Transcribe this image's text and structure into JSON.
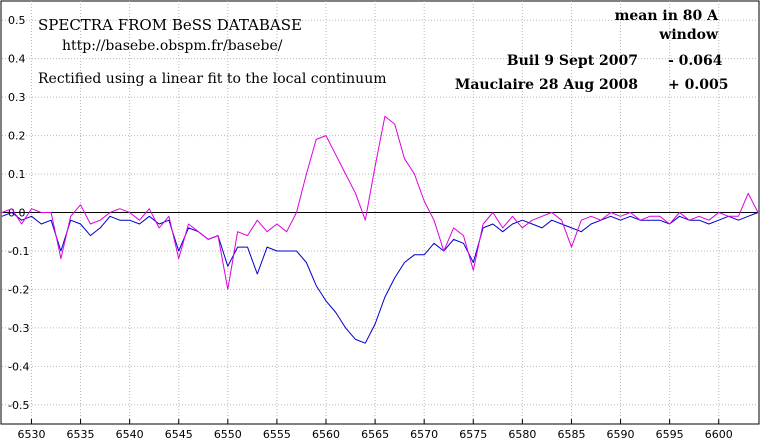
{
  "chart_data": {
    "type": "line",
    "title": "SPECTRA FROM BeSS DATABASE",
    "subtitle": "http://basebe.obspm.fr/basebe/",
    "note": "Rectified using a linear fit to the local continuum",
    "legend_header": [
      "mean in  80 A",
      "window"
    ],
    "xlim": [
      6527,
      6604
    ],
    "ylim": [
      -0.55,
      0.55
    ],
    "xticks": [
      6530,
      6535,
      6540,
      6545,
      6550,
      6555,
      6560,
      6565,
      6570,
      6575,
      6580,
      6585,
      6590,
      6595,
      6600
    ],
    "yticks": [
      0.5,
      0.4,
      0.3,
      0.2,
      0.1,
      0,
      -0.1,
      -0.2,
      -0.3,
      -0.4,
      -0.5
    ],
    "ytick_labels": [
      "0.5",
      "0.4",
      "0.3",
      "0.2",
      "0.1",
      "0.0",
      "-0.1",
      "-0.2",
      "-0.3",
      "-0.4",
      "-0.5"
    ],
    "grid": true,
    "zero_line": true,
    "legend_position": "top-right",
    "series": [
      {
        "name": "Buil  9 Sept 2007",
        "mean": "- 0.064",
        "color": "#0000cc",
        "x": [
          6527,
          6528,
          6529,
          6530,
          6531,
          6532,
          6533,
          6534,
          6535,
          6536,
          6537,
          6538,
          6539,
          6540,
          6541,
          6542,
          6543,
          6544,
          6545,
          6546,
          6547,
          6548,
          6549,
          6550,
          6551,
          6552,
          6553,
          6554,
          6555,
          6556,
          6557,
          6558,
          6559,
          6560,
          6561,
          6562,
          6563,
          6564,
          6565,
          6566,
          6567,
          6568,
          6569,
          6570,
          6571,
          6572,
          6573,
          6574,
          6575,
          6576,
          6577,
          6578,
          6579,
          6580,
          6581,
          6582,
          6583,
          6584,
          6585,
          6586,
          6587,
          6588,
          6589,
          6590,
          6591,
          6592,
          6593,
          6594,
          6595,
          6596,
          6597,
          6598,
          6599,
          6600,
          6601,
          6602,
          6603,
          6604
        ],
        "y": [
          -0.01,
          0.0,
          -0.02,
          -0.01,
          -0.03,
          -0.02,
          -0.1,
          -0.02,
          -0.03,
          -0.06,
          -0.04,
          -0.01,
          -0.02,
          -0.02,
          -0.03,
          -0.01,
          -0.03,
          -0.02,
          -0.1,
          -0.04,
          -0.05,
          -0.07,
          -0.06,
          -0.14,
          -0.09,
          -0.09,
          -0.16,
          -0.09,
          -0.1,
          -0.1,
          -0.1,
          -0.13,
          -0.19,
          -0.23,
          -0.26,
          -0.3,
          -0.33,
          -0.34,
          -0.29,
          -0.22,
          -0.17,
          -0.13,
          -0.11,
          -0.11,
          -0.08,
          -0.1,
          -0.07,
          -0.08,
          -0.13,
          -0.04,
          -0.03,
          -0.05,
          -0.03,
          -0.02,
          -0.03,
          -0.04,
          -0.02,
          -0.03,
          -0.04,
          -0.05,
          -0.03,
          -0.02,
          -0.01,
          -0.02,
          -0.01,
          -0.02,
          -0.02,
          -0.02,
          -0.03,
          -0.01,
          -0.02,
          -0.02,
          -0.03,
          -0.02,
          -0.01,
          -0.02,
          -0.01,
          0.0
        ]
      },
      {
        "name": "Mauclaire 28 Aug 2008",
        "mean": "+ 0.005",
        "color": "#dd00dd",
        "x": [
          6527,
          6528,
          6529,
          6530,
          6531,
          6532,
          6533,
          6534,
          6535,
          6536,
          6537,
          6538,
          6539,
          6540,
          6541,
          6542,
          6543,
          6544,
          6545,
          6546,
          6547,
          6548,
          6549,
          6550,
          6551,
          6552,
          6553,
          6554,
          6555,
          6556,
          6557,
          6558,
          6559,
          6560,
          6561,
          6562,
          6563,
          6564,
          6565,
          6566,
          6567,
          6568,
          6569,
          6570,
          6571,
          6572,
          6573,
          6574,
          6575,
          6576,
          6577,
          6578,
          6579,
          6580,
          6581,
          6582,
          6583,
          6584,
          6585,
          6586,
          6587,
          6588,
          6589,
          6590,
          6591,
          6592,
          6593,
          6594,
          6595,
          6596,
          6597,
          6598,
          6599,
          6600,
          6601,
          6602,
          6603,
          6604
        ],
        "y": [
          0.0,
          0.01,
          -0.03,
          0.01,
          0.0,
          0.0,
          -0.12,
          -0.01,
          0.02,
          -0.03,
          -0.02,
          0.0,
          0.01,
          0.0,
          -0.02,
          0.01,
          -0.04,
          -0.01,
          -0.12,
          -0.03,
          -0.05,
          -0.07,
          -0.06,
          -0.2,
          -0.05,
          -0.06,
          -0.02,
          -0.05,
          -0.03,
          -0.05,
          0.0,
          0.1,
          0.19,
          0.2,
          0.15,
          0.1,
          0.05,
          -0.02,
          0.12,
          0.25,
          0.23,
          0.14,
          0.1,
          0.03,
          -0.02,
          -0.1,
          -0.04,
          -0.06,
          -0.15,
          -0.03,
          0.0,
          -0.04,
          -0.01,
          -0.04,
          -0.02,
          -0.01,
          0.0,
          -0.02,
          -0.09,
          -0.02,
          -0.01,
          -0.02,
          0.0,
          -0.01,
          0.0,
          -0.02,
          -0.01,
          -0.01,
          -0.03,
          0.0,
          -0.02,
          -0.01,
          -0.02,
          0.0,
          -0.01,
          -0.01,
          0.05,
          0.0
        ]
      }
    ]
  }
}
